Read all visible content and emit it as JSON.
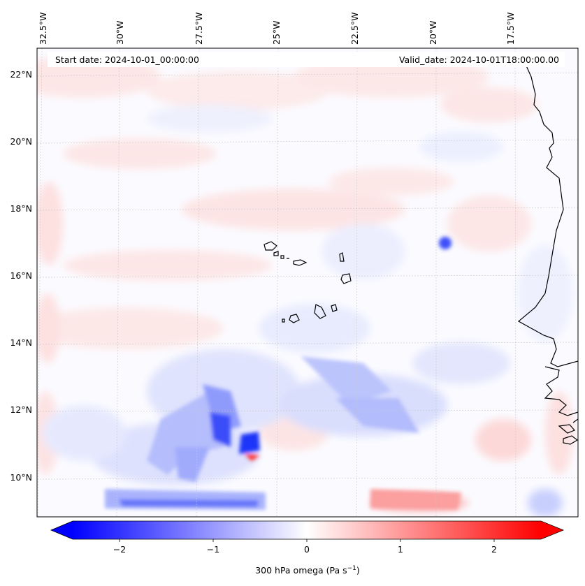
{
  "header": {
    "start_date": "Start date: 2024-10-01_00:00:00",
    "valid_date": "Valid_date: 2024-10-01T18:00:00.00"
  },
  "map": {
    "lon_labels": [
      "32.5°W",
      "30°W",
      "27.5°W",
      "25°W",
      "22.5°W",
      "20°W",
      "17.5°W"
    ],
    "lat_labels": [
      "22°N",
      "20°N",
      "18°N",
      "16°N",
      "14°N",
      "12°N",
      "10°N"
    ]
  },
  "colorbar": {
    "ticks": [
      "−2",
      "−1",
      "0",
      "1",
      "2"
    ],
    "label_main": "300 hPa omega (Pa s",
    "label_exp": "−1",
    "label_close": ")",
    "range": [
      -2.5,
      2.5
    ],
    "colors": {
      "negative": "#0000ff",
      "zero": "#ffffff",
      "positive": "#ff0000"
    }
  },
  "chart_data": {
    "type": "heatmap",
    "variable": "300 hPa omega",
    "units": "Pa s⁻¹",
    "colorbar_range": [
      -2.5,
      2.5
    ],
    "colorbar_ticks": [
      -2,
      -1,
      0,
      1,
      2
    ],
    "lon_ticks": [
      -32.5,
      -30,
      -27.5,
      -25,
      -22.5,
      -20,
      -17.5
    ],
    "lat_ticks": [
      10,
      12,
      14,
      16,
      18,
      20,
      22
    ]
  }
}
